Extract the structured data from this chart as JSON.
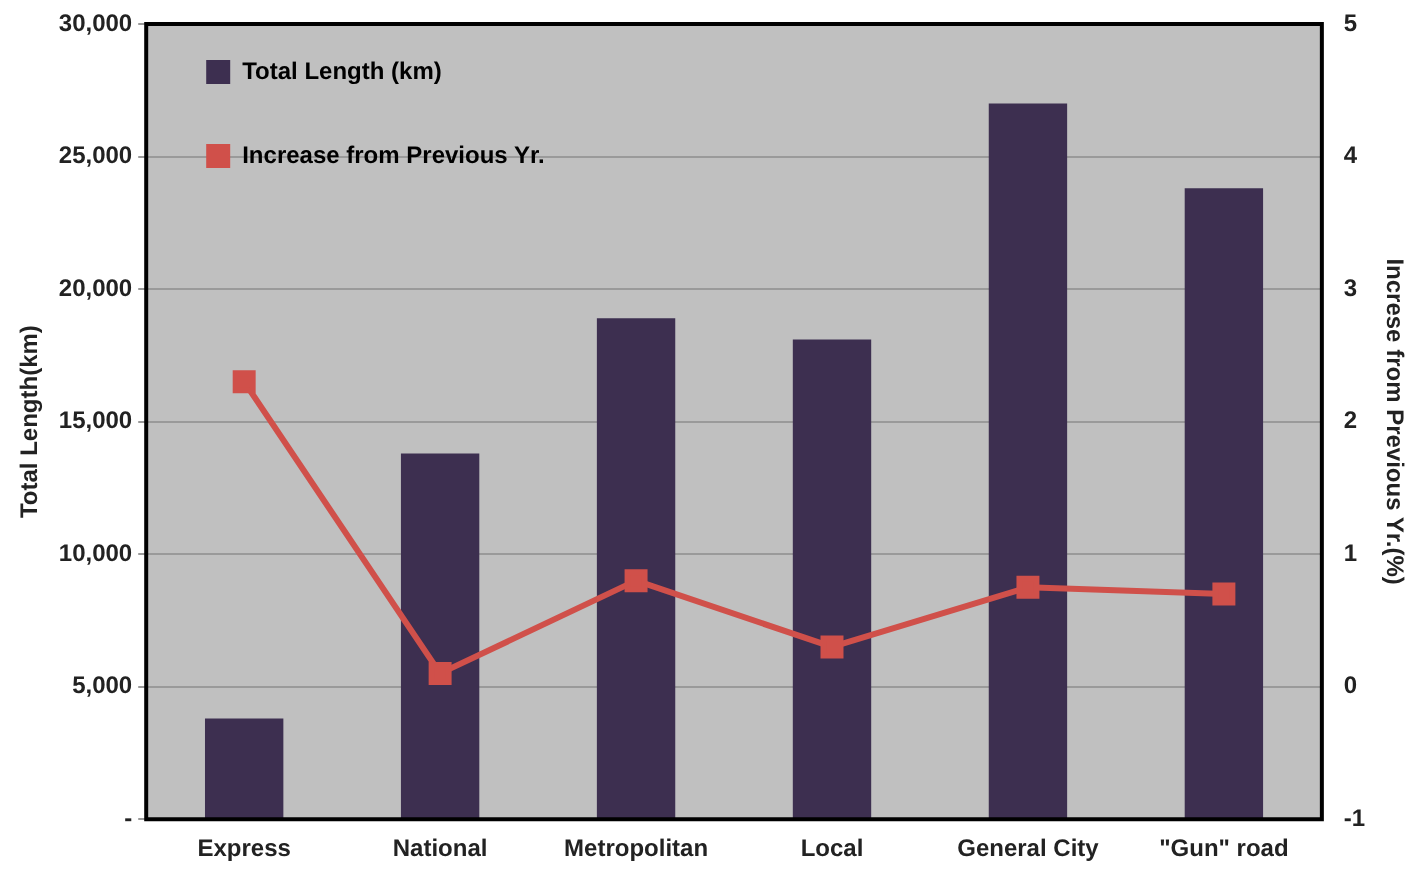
{
  "chart_data": {
    "type": "bar",
    "ylabel": "Total Length(km)",
    "y2label": "Increse from Previous Yr.(%)",
    "categories": [
      "Express",
      "National",
      "Metropolitan",
      "Local",
      "General City",
      "\"Gun\" road"
    ],
    "series": [
      {
        "name": "Total Length (km)",
        "type": "bar",
        "color": "#3d2f50",
        "values": [
          3800,
          13800,
          18900,
          18100,
          27000,
          23800
        ]
      },
      {
        "name": "Increase from Previous Yr.",
        "type": "line",
        "axis": "y2",
        "color": "#d0504a",
        "marker": "square",
        "values": [
          2.3,
          0.1,
          0.8,
          0.3,
          0.75,
          0.7
        ]
      }
    ],
    "ylim": [
      0,
      30000
    ],
    "yticks": [
      {
        "value": 0,
        "label": "-"
      },
      {
        "value": 5000,
        "label": "5,000"
      },
      {
        "value": 10000,
        "label": "10,000"
      },
      {
        "value": 15000,
        "label": "15,000"
      },
      {
        "value": 20000,
        "label": "20,000"
      },
      {
        "value": 25000,
        "label": "25,000"
      },
      {
        "value": 30000,
        "label": "30,000"
      }
    ],
    "y2lim": [
      -1,
      5
    ],
    "y2ticks": [
      -1,
      0,
      1,
      2,
      3,
      4,
      5
    ],
    "grid": "y",
    "legend": "top left"
  }
}
